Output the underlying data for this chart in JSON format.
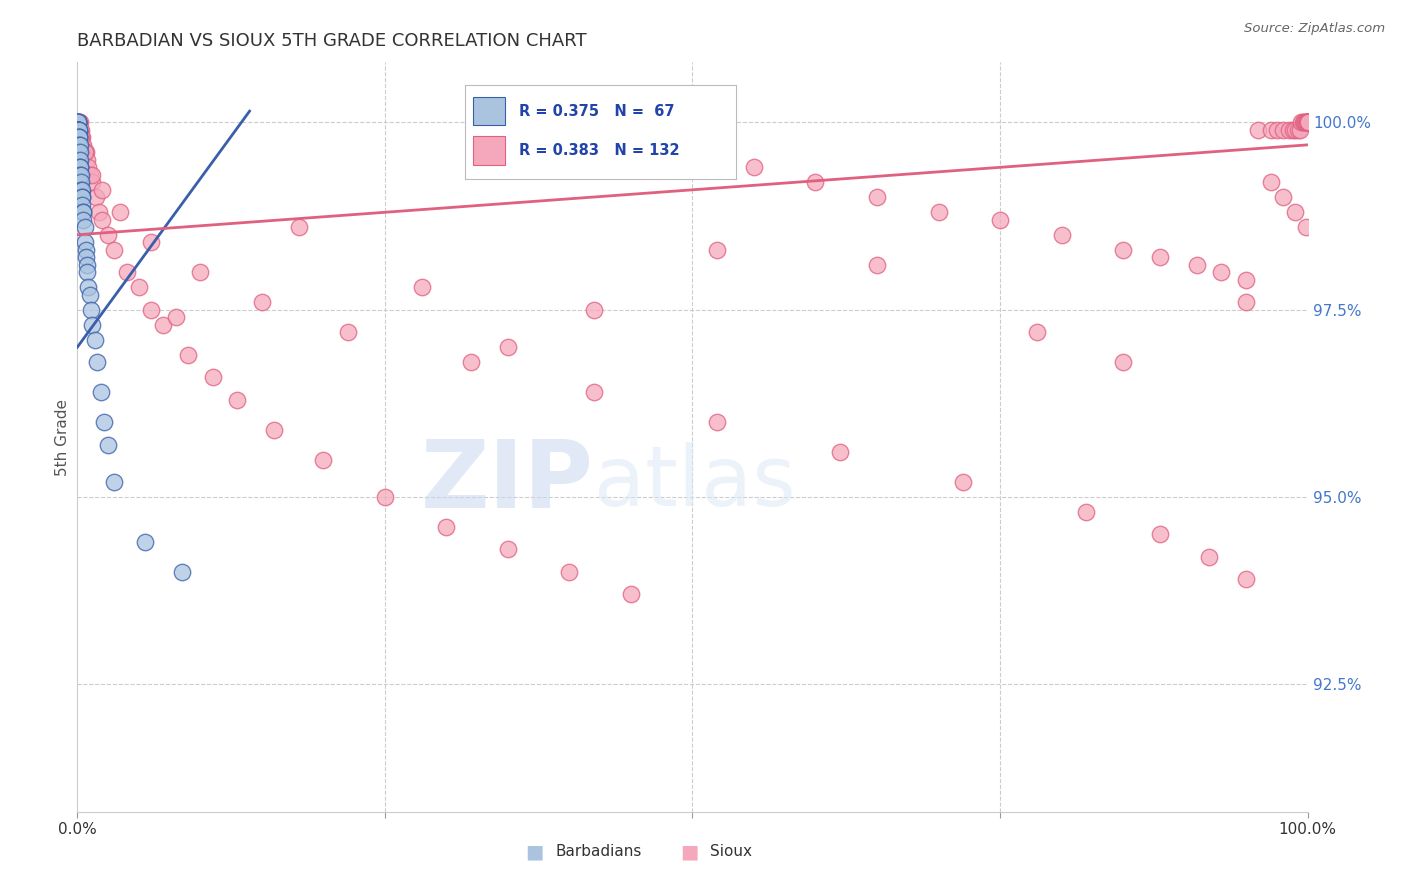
{
  "title": "BARBADIAN VS SIOUX 5TH GRADE CORRELATION CHART",
  "source": "Source: ZipAtlas.com",
  "ylabel": "5th Grade",
  "ytick_labels": [
    "92.5%",
    "95.0%",
    "97.5%",
    "100.0%"
  ],
  "ytick_values": [
    0.925,
    0.95,
    0.975,
    1.0
  ],
  "xlim": [
    0.0,
    1.0
  ],
  "ylim": [
    0.908,
    1.008
  ],
  "legend_r_barbadian": "R = 0.375",
  "legend_n_barbadian": "N =  67",
  "legend_r_sioux": "R = 0.383",
  "legend_n_sioux": "N = 132",
  "barbadian_color": "#aac4e0",
  "sioux_color": "#f5a8bc",
  "barbadian_line_color": "#3a5faa",
  "sioux_line_color": "#e06080",
  "watermark_zip": "ZIP",
  "watermark_atlas": "atlas",
  "barbadian_x": [
    0.0005,
    0.0005,
    0.0005,
    0.0005,
    0.0005,
    0.0005,
    0.0005,
    0.0005,
    0.0005,
    0.0005,
    0.0005,
    0.0008,
    0.0008,
    0.0008,
    0.0008,
    0.0008,
    0.0008,
    0.001,
    0.001,
    0.001,
    0.001,
    0.001,
    0.001,
    0.001,
    0.001,
    0.001,
    0.0015,
    0.0015,
    0.0015,
    0.0015,
    0.0015,
    0.002,
    0.002,
    0.002,
    0.002,
    0.002,
    0.002,
    0.0025,
    0.0025,
    0.003,
    0.003,
    0.003,
    0.0035,
    0.0035,
    0.004,
    0.004,
    0.0045,
    0.005,
    0.005,
    0.006,
    0.006,
    0.007,
    0.007,
    0.008,
    0.008,
    0.009,
    0.01,
    0.011,
    0.012,
    0.014,
    0.016,
    0.019,
    0.022,
    0.025,
    0.03,
    0.055,
    0.085
  ],
  "barbadian_y": [
    1.0,
    1.0,
    1.0,
    1.0,
    1.0,
    0.999,
    0.999,
    0.999,
    0.999,
    0.999,
    0.998,
    0.999,
    0.999,
    0.998,
    0.998,
    0.997,
    0.997,
    0.999,
    0.999,
    0.998,
    0.998,
    0.997,
    0.997,
    0.996,
    0.996,
    0.995,
    0.998,
    0.997,
    0.996,
    0.995,
    0.994,
    0.997,
    0.996,
    0.995,
    0.994,
    0.993,
    0.992,
    0.994,
    0.993,
    0.993,
    0.992,
    0.991,
    0.991,
    0.99,
    0.99,
    0.989,
    0.988,
    0.988,
    0.987,
    0.986,
    0.984,
    0.983,
    0.982,
    0.981,
    0.98,
    0.978,
    0.977,
    0.975,
    0.973,
    0.971,
    0.968,
    0.964,
    0.96,
    0.957,
    0.952,
    0.944,
    0.94
  ],
  "sioux_x": [
    0.001,
    0.001,
    0.001,
    0.002,
    0.002,
    0.002,
    0.003,
    0.003,
    0.004,
    0.004,
    0.005,
    0.006,
    0.007,
    0.008,
    0.009,
    0.01,
    0.012,
    0.015,
    0.018,
    0.02,
    0.025,
    0.03,
    0.04,
    0.05,
    0.06,
    0.07,
    0.09,
    0.11,
    0.13,
    0.16,
    0.2,
    0.25,
    0.3,
    0.35,
    0.4,
    0.45,
    0.5,
    0.55,
    0.6,
    0.65,
    0.7,
    0.75,
    0.8,
    0.85,
    0.88,
    0.91,
    0.93,
    0.95,
    0.96,
    0.97,
    0.975,
    0.98,
    0.985,
    0.988,
    0.99,
    0.992,
    0.994,
    0.995,
    0.996,
    0.997,
    0.998,
    0.999,
    0.999,
    1.0,
    1.0,
    1.0,
    1.0,
    1.0,
    1.0,
    1.0,
    1.0,
    1.0,
    1.0,
    1.0,
    1.0,
    1.0,
    1.0,
    1.0,
    1.0,
    1.0,
    1.0,
    1.0,
    1.0,
    1.0,
    1.0,
    1.0,
    1.0,
    1.0,
    1.0,
    1.0,
    1.0,
    1.0,
    1.0,
    1.0,
    1.0,
    1.0,
    1.0,
    1.0,
    1.0,
    1.0,
    0.003,
    0.006,
    0.012,
    0.02,
    0.035,
    0.06,
    0.1,
    0.15,
    0.22,
    0.32,
    0.42,
    0.52,
    0.62,
    0.72,
    0.82,
    0.88,
    0.92,
    0.95,
    0.97,
    0.98,
    0.99,
    0.999,
    0.42,
    0.28,
    0.65,
    0.78,
    0.52,
    0.35,
    0.18,
    0.08,
    0.95,
    0.85
  ],
  "sioux_y": [
    1.0,
    1.0,
    0.999,
    1.0,
    0.999,
    0.998,
    0.999,
    0.998,
    0.998,
    0.997,
    0.997,
    0.996,
    0.996,
    0.995,
    0.994,
    0.993,
    0.992,
    0.99,
    0.988,
    0.987,
    0.985,
    0.983,
    0.98,
    0.978,
    0.975,
    0.973,
    0.969,
    0.966,
    0.963,
    0.959,
    0.955,
    0.95,
    0.946,
    0.943,
    0.94,
    0.937,
    0.996,
    0.994,
    0.992,
    0.99,
    0.988,
    0.987,
    0.985,
    0.983,
    0.982,
    0.981,
    0.98,
    0.979,
    0.999,
    0.999,
    0.999,
    0.999,
    0.999,
    0.999,
    0.999,
    0.999,
    0.999,
    1.0,
    1.0,
    1.0,
    1.0,
    1.0,
    1.0,
    1.0,
    1.0,
    1.0,
    1.0,
    1.0,
    1.0,
    1.0,
    1.0,
    1.0,
    1.0,
    1.0,
    1.0,
    1.0,
    1.0,
    1.0,
    1.0,
    1.0,
    1.0,
    1.0,
    1.0,
    1.0,
    1.0,
    1.0,
    1.0,
    1.0,
    1.0,
    1.0,
    1.0,
    1.0,
    1.0,
    1.0,
    1.0,
    1.0,
    1.0,
    1.0,
    1.0,
    1.0,
    0.998,
    0.996,
    0.993,
    0.991,
    0.988,
    0.984,
    0.98,
    0.976,
    0.972,
    0.968,
    0.964,
    0.96,
    0.956,
    0.952,
    0.948,
    0.945,
    0.942,
    0.939,
    0.992,
    0.99,
    0.988,
    0.986,
    0.975,
    0.978,
    0.981,
    0.972,
    0.983,
    0.97,
    0.986,
    0.974,
    0.976,
    0.968
  ],
  "barbadian_trend_x": [
    0.0,
    0.14
  ],
  "barbadian_trend_y": [
    0.97,
    1.0015
  ],
  "sioux_trend_x": [
    0.0,
    1.0
  ],
  "sioux_trend_y": [
    0.985,
    0.997
  ]
}
